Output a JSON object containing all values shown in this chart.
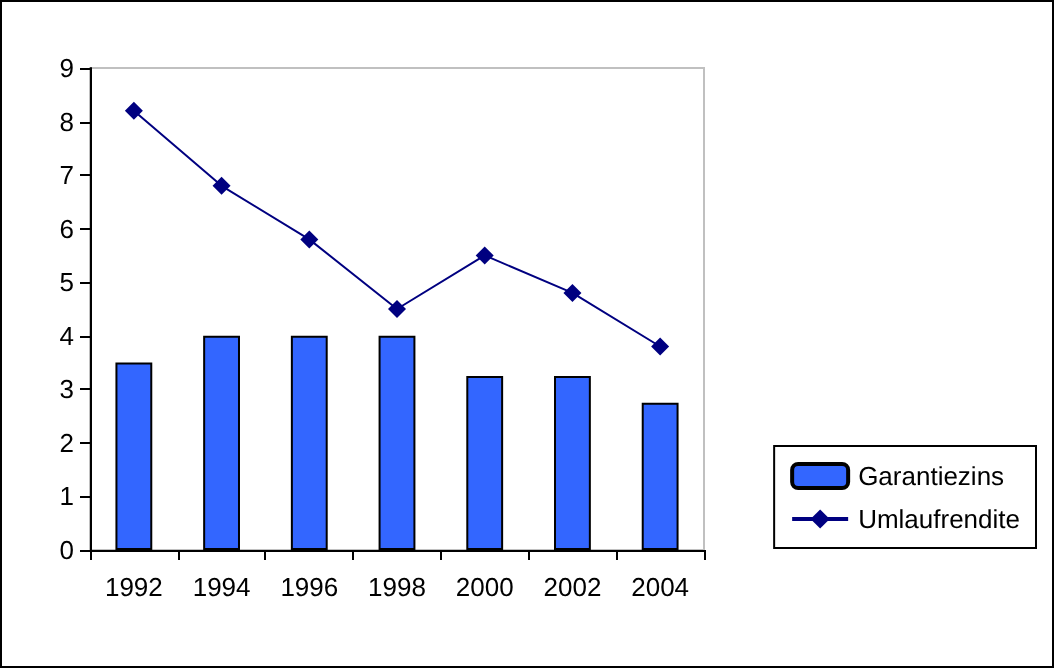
{
  "chart_data": {
    "type": "bar",
    "categories": [
      "1992",
      "1994",
      "1996",
      "1998",
      "2000",
      "2002",
      "2004"
    ],
    "series": [
      {
        "name": "Garantiezins",
        "color": "#3366ff",
        "values": [
          3.5,
          4,
          4,
          4,
          3.25,
          3.25,
          2.75
        ]
      },
      {
        "name": "Umlaufrendite",
        "type": "line",
        "color": "#000080",
        "values": [
          8.2,
          6.8,
          5.8,
          4.5,
          5.5,
          4.8,
          3.8
        ]
      }
    ],
    "ylim": [
      0,
      9
    ],
    "yticks": [
      0,
      1,
      2,
      3,
      4,
      5,
      6,
      7,
      8,
      9
    ],
    "grid": false,
    "legend": "right",
    "marker": "diamond"
  }
}
